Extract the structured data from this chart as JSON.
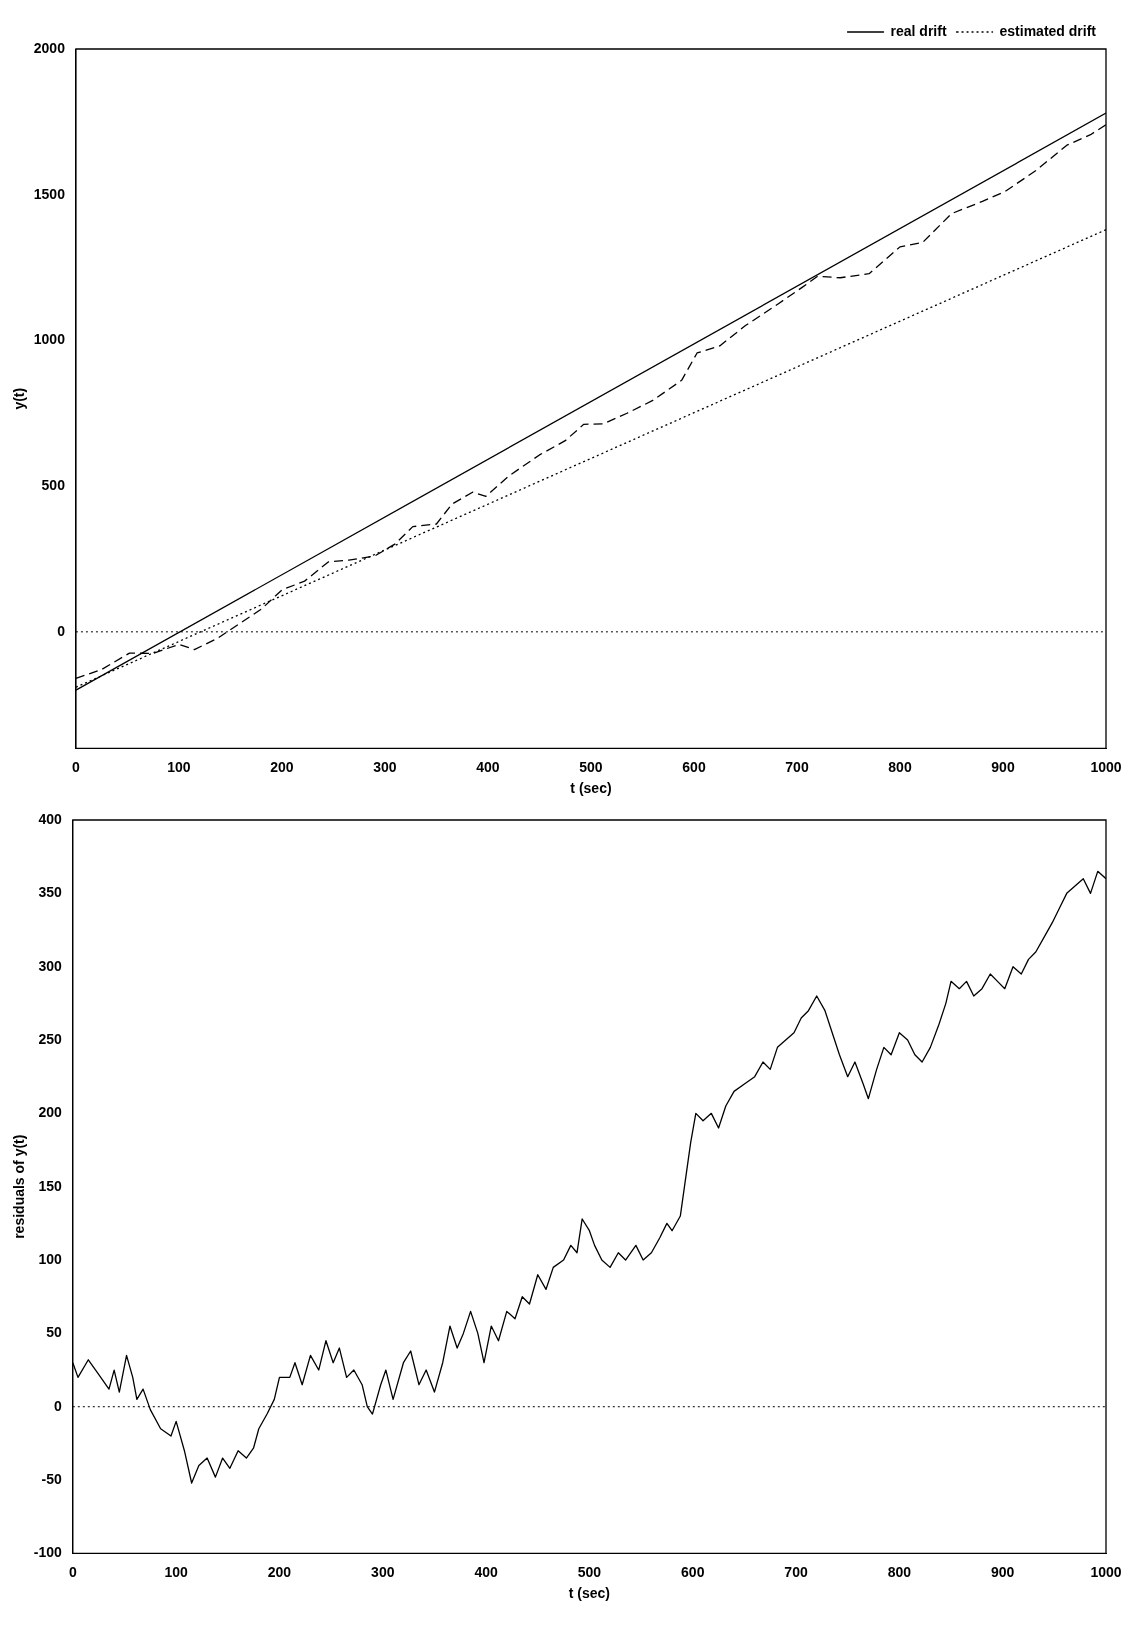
{
  "chart_data": [
    {
      "type": "line",
      "xlabel": "t (sec)",
      "ylabel": "y(t)",
      "xlim": [
        0,
        1000
      ],
      "ylim": [
        -400,
        2000
      ],
      "xticks": [
        0,
        100,
        200,
        300,
        400,
        500,
        600,
        700,
        800,
        900,
        1000
      ],
      "yticks": [
        0,
        500,
        1000,
        1500,
        2000
      ],
      "legend": "top right",
      "marker": "none",
      "series": [
        {
          "name": "real drift",
          "color": "#000000",
          "line_style": "solid",
          "x": [
            0,
            1000
          ],
          "values": [
            -200,
            1780
          ]
        },
        {
          "name": "estimated drift",
          "color": "#000000",
          "line_style": "dotted",
          "x": [
            0,
            1000
          ],
          "values": [
            -190,
            1380
          ]
        },
        {
          "color": "#000000",
          "line_style": "dashed",
          "x": [
            0,
            25,
            52,
            75,
            100,
            115,
            138,
            160,
            180,
            200,
            222,
            245,
            265,
            290,
            310,
            327,
            350,
            365,
            385,
            398,
            420,
            450,
            475,
            493,
            512,
            535,
            560,
            588,
            603,
            625,
            650,
            682,
            705,
            720,
            742,
            770,
            800,
            822,
            850,
            880,
            902,
            932,
            962,
            985,
            1000
          ],
          "values": [
            -160,
            -129,
            -73,
            -74,
            -43,
            -61,
            -21,
            31,
            78,
            144,
            174,
            240,
            246,
            260,
            302,
            361,
            370,
            438,
            479,
            465,
            534,
            607,
            656,
            712,
            714,
            750,
            794,
            863,
            957,
            981,
            1051,
            1126,
            1182,
            1220,
            1215,
            1229,
            1321,
            1336,
            1435,
            1477,
            1511,
            1583,
            1670,
            1706,
            1740
          ]
        }
      ],
      "ref_lines": [
        {
          "axis": "y",
          "value": 0,
          "line_style": "dotted",
          "color": "#000000"
        }
      ]
    },
    {
      "type": "line",
      "xlabel": "t (sec)",
      "ylabel": "residuals of y(t)",
      "xlim": [
        0,
        1000
      ],
      "ylim": [
        -100,
        400
      ],
      "xticks": [
        0,
        100,
        200,
        300,
        400,
        500,
        600,
        700,
        800,
        900,
        1000
      ],
      "yticks": [
        -100,
        -50,
        0,
        50,
        100,
        150,
        200,
        250,
        300,
        350,
        400
      ],
      "marker": "none",
      "series": [
        {
          "color": "#000000",
          "line_style": "solid",
          "x": [
            0,
            5,
            15,
            25,
            35,
            40,
            45,
            52,
            58,
            62,
            68,
            75,
            85,
            95,
            100,
            108,
            115,
            122,
            130,
            138,
            145,
            152,
            160,
            168,
            175,
            180,
            188,
            195,
            200,
            210,
            215,
            222,
            230,
            238,
            245,
            252,
            258,
            265,
            272,
            280,
            285,
            290,
            298,
            303,
            310,
            320,
            327,
            335,
            342,
            350,
            358,
            365,
            372,
            378,
            385,
            392,
            398,
            405,
            412,
            420,
            428,
            435,
            442,
            450,
            458,
            465,
            475,
            482,
            488,
            493,
            500,
            505,
            512,
            520,
            528,
            535,
            545,
            552,
            560,
            568,
            575,
            580,
            588,
            592,
            598,
            603,
            610,
            618,
            625,
            632,
            640,
            650,
            660,
            668,
            675,
            682,
            690,
            698,
            705,
            712,
            720,
            728,
            735,
            742,
            750,
            757,
            765,
            770,
            778,
            785,
            792,
            800,
            808,
            815,
            822,
            830,
            838,
            845,
            850,
            858,
            865,
            872,
            880,
            888,
            895,
            902,
            910,
            918,
            925,
            932,
            940,
            948,
            955,
            962,
            970,
            978,
            985,
            992,
            1000
          ],
          "values": [
            30,
            20,
            32,
            22,
            12,
            25,
            10,
            35,
            20,
            5,
            12,
            -2,
            -15,
            -20,
            -10,
            -30,
            -52,
            -40,
            -35,
            -48,
            -35,
            -42,
            -30,
            -35,
            -28,
            -15,
            -5,
            5,
            20,
            20,
            30,
            15,
            35,
            25,
            45,
            30,
            40,
            20,
            25,
            15,
            0,
            -5,
            15,
            25,
            5,
            30,
            38,
            15,
            25,
            10,
            30,
            55,
            40,
            50,
            65,
            50,
            30,
            55,
            45,
            65,
            60,
            75,
            70,
            90,
            80,
            95,
            100,
            110,
            105,
            128,
            120,
            110,
            100,
            95,
            105,
            100,
            110,
            100,
            105,
            115,
            125,
            120,
            130,
            150,
            180,
            200,
            195,
            200,
            190,
            205,
            215,
            220,
            225,
            235,
            230,
            245,
            250,
            255,
            265,
            270,
            280,
            270,
            255,
            240,
            225,
            235,
            220,
            210,
            230,
            245,
            240,
            255,
            250,
            240,
            235,
            245,
            260,
            275,
            290,
            285,
            290,
            280,
            285,
            295,
            290,
            285,
            300,
            295,
            305,
            310,
            320,
            330,
            340,
            350,
            355,
            360,
            350,
            365,
            360
          ]
        }
      ],
      "ref_lines": [
        {
          "axis": "y",
          "value": 0,
          "line_style": "dotted",
          "color": "#000000"
        }
      ]
    }
  ]
}
